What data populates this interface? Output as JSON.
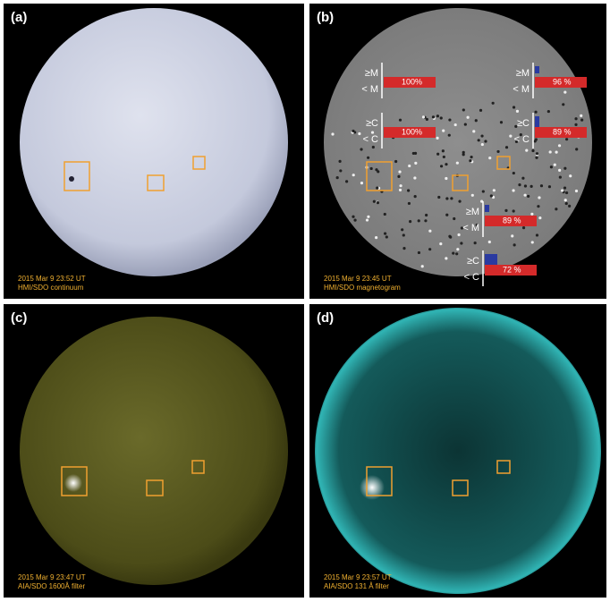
{
  "panels": [
    {
      "label": "(a)",
      "date": "2015 Mar 9 23:52 UT",
      "instrument": "HMI/SDO  continuum"
    },
    {
      "label": "(b)",
      "date": "2015 Mar 9 23:45 UT",
      "instrument": "HMI/SDO  magnetogram",
      "forecasts": [
        {
          "upper": "≥M",
          "lower": "< M",
          "value": "100%"
        },
        {
          "upper": "≥C",
          "lower": "< C",
          "value": "100%"
        },
        {
          "upper": "≥M",
          "lower": "< M",
          "value": "96 %"
        },
        {
          "upper": "≥C",
          "lower": "< C",
          "value": "89 %"
        },
        {
          "upper": "≥M",
          "lower": "< M",
          "value": "89 %"
        },
        {
          "upper": "≥C",
          "lower": "< C",
          "value": "72 %"
        }
      ]
    },
    {
      "label": "(c)",
      "date": "2015 Mar 9 23:47 UT",
      "instrument": "AIA/SDO  1600Å filter"
    },
    {
      "label": "(d)",
      "date": "2015 Mar 9 23:57 UT",
      "instrument": "AIA/SDO  131 Å filter"
    }
  ]
}
